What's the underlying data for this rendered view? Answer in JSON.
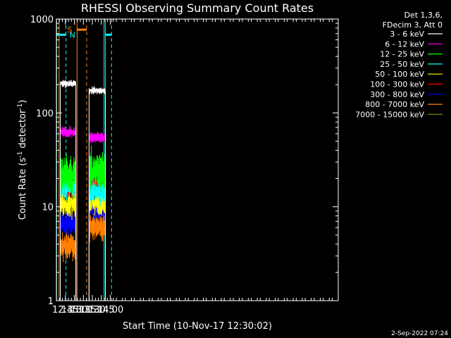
{
  "chart_data": {
    "type": "line",
    "title": "RHESSI Observing Summary Count Rates",
    "xlabel": "Start Time (10-Nov-17 12:30:02)",
    "ylabel_main": "Count Rate (s",
    "ylabel_sup1": "-1",
    "ylabel_mid": " detector",
    "ylabel_sup2": "-1",
    "ylabel_end": ")",
    "y_scale": "log",
    "xlim": [
      750,
      1220
    ],
    "ylim": [
      1,
      1000
    ],
    "x_ticks": [
      {
        "value": 765,
        "label": "12:45"
      },
      {
        "value": 780,
        "label": "13:00"
      },
      {
        "value": 795,
        "label": "13:15"
      },
      {
        "value": 810,
        "label": "13:30"
      },
      {
        "value": 825,
        "label": "13:45"
      },
      {
        "value": 840,
        "label": "14:00"
      }
    ],
    "y_ticks": [
      {
        "value": 1,
        "label": "1"
      },
      {
        "value": 10,
        "label": "10"
      },
      {
        "value": 100,
        "label": "100"
      },
      {
        "value": 1000,
        "label": "1000"
      }
    ],
    "legend_header": [
      "Det 1,3,6,",
      "FDecim 3, Att 0"
    ],
    "series": [
      {
        "name": "3 - 6 keV",
        "color": "#000000",
        "seg1": 205,
        "seg2": 172,
        "noise": 0.04
      },
      {
        "name": "6 - 12 keV",
        "color": "#ff00ff",
        "seg1": 62,
        "seg2": 55,
        "noise": 0.07
      },
      {
        "name": "12 - 25 keV",
        "color": "#00ff00",
        "seg1": 22,
        "seg2": 24,
        "noise": 0.25
      },
      {
        "name": "25 - 50 keV",
        "color": "#00ffff",
        "seg1": 16,
        "seg2": 14.5,
        "noise": 0.14
      },
      {
        "name": "50 - 100 keV",
        "color": "#ffff00",
        "seg1": 10.5,
        "seg2": 11,
        "noise": 0.15
      },
      {
        "name": "100 - 300 keV",
        "color": "#ff0000",
        "seg1": 15,
        "seg2": 17.5,
        "noise": 0.09
      },
      {
        "name": "300 - 800 keV",
        "color": "#0000ff",
        "seg1": 6.5,
        "seg2": 9.5,
        "noise": 0.15
      },
      {
        "name": "800 - 7000 keV",
        "color": "#ff8000",
        "seg1": 3.8,
        "seg2": 6.2,
        "noise": 0.16
      },
      {
        "name": "7000 - 15000 keV",
        "color": "#808000",
        "seg1": null,
        "seg2": null,
        "noise": 0
      }
    ],
    "segments": [
      {
        "start": 756.5,
        "end": 782.5
      },
      {
        "start": 804.5,
        "end": 831.7
      }
    ],
    "night_markers": {
      "label": "N",
      "color": "#00ffff",
      "bars": [
        {
          "start": 750,
          "end": 766
        },
        {
          "start": 831,
          "end": 842
        }
      ],
      "level": 680,
      "lines_solid": [
        750.4,
        829.6
      ],
      "lines_dashed": [
        766,
        842
      ]
    },
    "saa_markers": {
      "label": "S",
      "color": "#ff8000",
      "bars": [
        {
          "start": 784.5,
          "end": 800.5
        }
      ],
      "level": 770,
      "lines_solid": [
        754.5,
        784.5,
        831.7
      ],
      "lines_dashed": [
        800.5
      ]
    }
  },
  "timestamp": "2-Sep-2022 07:24"
}
